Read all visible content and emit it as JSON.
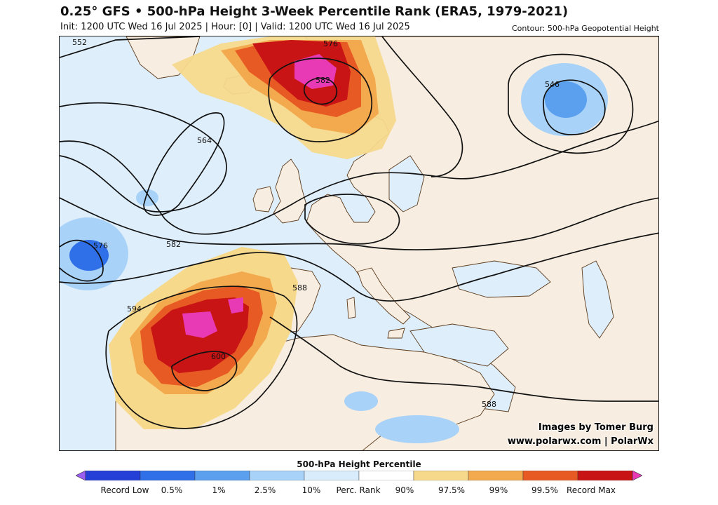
{
  "header": {
    "title": "0.25° GFS • 500-hPa Height 3-Week Percentile Rank (ERA5, 1979-2021)",
    "subtitle": "Init: 1200 UTC Wed 16 Jul 2025 | Hour: [0] | Valid: 1200 UTC Wed 16 Jul 2025",
    "contour_note": "Contour: 500-hPa Geopotential Height"
  },
  "credits": {
    "line1": "Images by Tomer Burg",
    "line2": "www.polarwx.com | PolarWx"
  },
  "contour_labels": [
    {
      "id": "c552",
      "text": "552"
    },
    {
      "id": "c564",
      "text": "564"
    },
    {
      "id": "c576a",
      "text": "576"
    },
    {
      "id": "c576b",
      "text": "576"
    },
    {
      "id": "c582a",
      "text": "582"
    },
    {
      "id": "c582b",
      "text": "582"
    },
    {
      "id": "c546",
      "text": "546"
    },
    {
      "id": "c588a",
      "text": "588"
    },
    {
      "id": "c588b",
      "text": "588"
    },
    {
      "id": "c594",
      "text": "594"
    },
    {
      "id": "c600",
      "text": "600"
    }
  ],
  "legend": {
    "title": "500-hPa Height Percentile",
    "labels": [
      "Record Low",
      "0.5%",
      "1%",
      "2.5%",
      "10%",
      "Perc. Rank",
      "90%",
      "97.5%",
      "99%",
      "99.5%",
      "Record Max"
    ],
    "colors": [
      "#9a5ef2",
      "#2540d6",
      "#2f6fe8",
      "#5aa0ef",
      "#a8d2f7",
      "#d8ecfb",
      "#ffffff",
      "#f7d98c",
      "#f3a94e",
      "#e85a24",
      "#c81414",
      "#e83ab4"
    ]
  },
  "colors": {
    "land": "#f7ede0",
    "ocean": "#deeefb",
    "border": "#5b3a1c"
  }
}
